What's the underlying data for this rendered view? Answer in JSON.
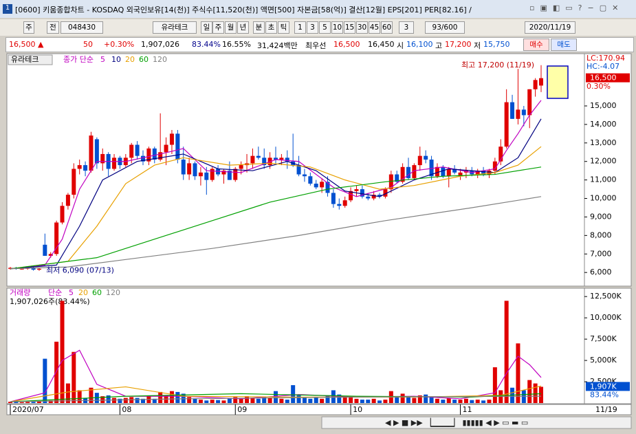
{
  "window": {
    "title": "[0600] 키움종합차트 - KOSDAQ 외국인보유[14(천)] 주식수[11,520(천)] 액면[500] 자본금[58(억)] 결산[12월] EPS[201] PER[82.16] /"
  },
  "toolbar": {
    "items": [
      "주",
      "전",
      "048430",
      "유라테크",
      "일",
      "주",
      "월",
      "년",
      "분",
      "초",
      "틱",
      "1",
      "3",
      "5",
      "10",
      "15",
      "30",
      "45",
      "60",
      "3",
      "93/600",
      "2020/11/19"
    ]
  },
  "quote": {
    "items": [
      "16,500 ▲",
      "50",
      "+0.30%",
      "1,907,026",
      "83.44%",
      "16.55%",
      "31,424백만",
      "최우선",
      "16,500",
      "16,450",
      "시",
      "16,100",
      "고",
      "17,200",
      "저",
      "15,750"
    ],
    "buy": "매수",
    "sell": "매도"
  },
  "chart_data": {
    "type": "candlestick",
    "name": "유라테크",
    "price_legend": "종가 단순",
    "candles": [
      [
        6200,
        6300,
        6150,
        6250
      ],
      [
        6250,
        6300,
        6150,
        6200
      ],
      [
        6200,
        6250,
        6150,
        6200
      ],
      [
        6200,
        6300,
        6150,
        6250
      ],
      [
        6250,
        6300,
        6100,
        6150
      ],
      [
        6150,
        6250,
        6090,
        6200
      ],
      [
        7500,
        8100,
        6900,
        6900
      ],
      [
        6900,
        7100,
        6800,
        7000
      ],
      [
        7000,
        8800,
        6900,
        8700
      ],
      [
        8700,
        9800,
        8600,
        9600
      ],
      [
        9600,
        10300,
        9400,
        10200
      ],
      [
        10200,
        11900,
        10000,
        11600
      ],
      [
        11600,
        12100,
        11300,
        11800
      ],
      [
        11800,
        12000,
        11200,
        11500
      ],
      [
        11500,
        13600,
        11400,
        13400
      ],
      [
        13200,
        13300,
        11600,
        11900
      ],
      [
        11900,
        12700,
        11500,
        12400
      ],
      [
        12400,
        12500,
        11200,
        11600
      ],
      [
        11600,
        12400,
        11500,
        12200
      ],
      [
        12200,
        12300,
        11600,
        11800
      ],
      [
        11800,
        12400,
        11700,
        12200
      ],
      [
        12200,
        13000,
        11900,
        12900
      ],
      [
        12900,
        13100,
        12100,
        12300
      ],
      [
        12300,
        12600,
        11800,
        12000
      ],
      [
        12000,
        12800,
        11800,
        12700
      ],
      [
        12700,
        12800,
        11900,
        12100
      ],
      [
        12100,
        14600,
        12000,
        12500
      ],
      [
        12500,
        13300,
        11800,
        12900
      ],
      [
        12900,
        13700,
        12400,
        13500
      ],
      [
        13500,
        13700,
        11900,
        12100
      ],
      [
        12100,
        12800,
        11000,
        11300
      ],
      [
        11300,
        12200,
        11000,
        11900
      ],
      [
        11900,
        12000,
        11000,
        11200
      ],
      [
        11200,
        11700,
        10700,
        11400
      ],
      [
        11400,
        11700,
        10200,
        11000
      ],
      [
        11000,
        11700,
        10900,
        11600
      ],
      [
        11600,
        11800,
        11200,
        11300
      ],
      [
        11300,
        11600,
        10800,
        11500
      ],
      [
        11500,
        12000,
        11000,
        11000
      ],
      [
        11000,
        11700,
        10900,
        11600
      ],
      [
        11600,
        12000,
        11300,
        11800
      ],
      [
        11800,
        12400,
        11400,
        11900
      ],
      [
        11900,
        12700,
        11600,
        12300
      ],
      [
        12300,
        12800,
        12100,
        12200
      ],
      [
        12200,
        12700,
        11600,
        11800
      ],
      [
        11800,
        12500,
        11600,
        12200
      ],
      [
        12200,
        12800,
        11900,
        12100
      ],
      [
        12100,
        12400,
        11800,
        12200
      ],
      [
        12200,
        12600,
        11600,
        12000
      ],
      [
        12000,
        13500,
        11700,
        11800
      ],
      [
        11800,
        12300,
        11200,
        11300
      ],
      [
        11300,
        11600,
        10900,
        11200
      ],
      [
        11200,
        11400,
        10700,
        10800
      ],
      [
        10800,
        11000,
        10500,
        10600
      ],
      [
        10600,
        11100,
        10300,
        10900
      ],
      [
        10900,
        11200,
        10100,
        10300
      ],
      [
        10300,
        10500,
        9500,
        9700
      ],
      [
        9700,
        10000,
        9400,
        9600
      ],
      [
        9600,
        10100,
        9500,
        9900
      ],
      [
        9900,
        10600,
        9800,
        10400
      ],
      [
        10400,
        10700,
        10100,
        10500
      ],
      [
        10500,
        10700,
        10000,
        10100
      ],
      [
        10100,
        10300,
        9900,
        10000
      ],
      [
        10000,
        10400,
        9900,
        10200
      ],
      [
        10200,
        10300,
        10000,
        10100
      ],
      [
        10100,
        10600,
        10000,
        10500
      ],
      [
        10500,
        11500,
        10300,
        11300
      ],
      [
        11300,
        11500,
        10800,
        10900
      ],
      [
        10900,
        11900,
        10800,
        11700
      ],
      [
        11700,
        12200,
        11000,
        11100
      ],
      [
        11100,
        11900,
        11000,
        11800
      ],
      [
        11800,
        12800,
        11500,
        12300
      ],
      [
        12300,
        12600,
        11900,
        12100
      ],
      [
        12100,
        12300,
        11000,
        11200
      ],
      [
        11200,
        11900,
        11100,
        11700
      ],
      [
        11700,
        11800,
        11100,
        11200
      ],
      [
        11200,
        11700,
        10600,
        11600
      ],
      [
        11600,
        11800,
        11300,
        11400
      ],
      [
        11200,
        11600,
        11000,
        11400
      ],
      [
        11400,
        11700,
        11100,
        11500
      ],
      [
        11500,
        11700,
        11200,
        11300
      ],
      [
        11300,
        11600,
        11100,
        11500
      ],
      [
        11500,
        11700,
        11200,
        11300
      ],
      [
        11300,
        11600,
        11100,
        11500
      ],
      [
        11500,
        12200,
        11300,
        12000
      ],
      [
        12000,
        13200,
        11800,
        12800
      ],
      [
        12800,
        15900,
        12700,
        15200
      ],
      [
        15200,
        15600,
        14300,
        14300
      ],
      [
        14300,
        17000,
        14000,
        14800
      ],
      [
        14800,
        15000,
        13900,
        14500
      ],
      [
        14500,
        15900,
        13800,
        15900
      ],
      [
        15900,
        16500,
        15500,
        16400
      ],
      [
        16100,
        17200,
        15750,
        16500
      ]
    ],
    "up_color": "#e00000",
    "down_color": "#0050d0",
    "ylim": [
      5300,
      17750
    ],
    "yticks": [
      {
        "value": 6000,
        "label": "6,000"
      },
      {
        "value": 7000,
        "label": "7,000"
      },
      {
        "value": 8000,
        "label": "8,000"
      },
      {
        "value": 9000,
        "label": "9,000"
      },
      {
        "value": 10000,
        "label": "10,000"
      },
      {
        "value": 11000,
        "label": "11,000"
      },
      {
        "value": 12000,
        "label": "12,000"
      },
      {
        "value": 13000,
        "label": "13,000"
      },
      {
        "value": 14000,
        "label": "14,000"
      },
      {
        "value": 15000,
        "label": "15,000"
      }
    ],
    "ma": [
      {
        "name": "5",
        "color": "#c000c0",
        "x": [
          0,
          6,
          9,
          12,
          15,
          20,
          26,
          30,
          34,
          40,
          46,
          50,
          56,
          60,
          66,
          70,
          75,
          80,
          84,
          86,
          88,
          90,
          92
        ],
        "values": [
          6200,
          6400,
          7800,
          10500,
          12000,
          12000,
          12400,
          12700,
          11500,
          11400,
          12100,
          12000,
          10600,
          10100,
          10600,
          11500,
          11700,
          11400,
          11600,
          12600,
          13500,
          14500,
          15300
        ]
      },
      {
        "name": "10",
        "color": "#000080",
        "x": [
          0,
          8,
          12,
          16,
          22,
          30,
          36,
          42,
          48,
          53,
          58,
          64,
          70,
          76,
          84,
          88,
          92
        ],
        "values": [
          6200,
          6400,
          8500,
          11000,
          12000,
          12400,
          11600,
          11500,
          12000,
          11500,
          10400,
          10100,
          11000,
          11600,
          11400,
          12200,
          14300
        ]
      },
      {
        "name": "20",
        "color": "#e8a000",
        "x": [
          0,
          10,
          15,
          20,
          25,
          30,
          38,
          45,
          52,
          58,
          64,
          70,
          78,
          84,
          88,
          92
        ],
        "values": [
          6200,
          6600,
          8500,
          10800,
          11800,
          12200,
          11800,
          11900,
          11700,
          11000,
          10500,
          10700,
          11200,
          11400,
          11800,
          12800
        ]
      },
      {
        "name": "60",
        "color": "#00a000",
        "x": [
          0,
          15,
          25,
          35,
          45,
          55,
          65,
          75,
          84,
          92
        ],
        "values": [
          6200,
          6800,
          7800,
          8800,
          9800,
          10500,
          10900,
          11200,
          11300,
          11700
        ]
      },
      {
        "name": "120",
        "color": "#808080",
        "x": [
          0,
          10,
          20,
          35,
          50,
          65,
          80,
          92
        ],
        "values": [
          6200,
          6300,
          6700,
          7300,
          8000,
          8800,
          9500,
          10100
        ]
      }
    ],
    "high_marker": {
      "value": 17200,
      "index": 92,
      "label": "최고 17,200 (11/19)"
    },
    "low_marker": {
      "value": 6090,
      "index": 5,
      "label": "최저 6,090 (07/13)"
    },
    "price_marker": {
      "value": 16500,
      "label": "16,500"
    },
    "right_labels": [
      "LC:170.94",
      "HC:-4.07",
      "0.30%"
    ],
    "volume": {
      "legend": "거래량",
      "legend_type": "단순",
      "summary": "1,907,026주(83.44%)",
      "values": [
        150,
        120,
        100,
        130,
        140,
        200,
        5200,
        300,
        7200,
        12000,
        2300,
        6000,
        1500,
        600,
        1800,
        1200,
        800,
        900,
        600,
        500,
        600,
        700,
        600,
        500,
        800,
        500,
        1300,
        900,
        1400,
        1300,
        1100,
        700,
        500,
        400,
        300,
        400,
        350,
        300,
        600,
        700,
        500,
        800,
        600,
        500,
        700,
        600,
        1400,
        500,
        400,
        2100,
        900,
        600,
        500,
        700,
        500,
        900,
        1500,
        1000,
        800,
        700,
        500,
        400,
        400,
        500,
        300,
        400,
        1400,
        700,
        1100,
        800,
        600,
        900,
        1000,
        700,
        500,
        400,
        600,
        400,
        400,
        500,
        350,
        400,
        300,
        400,
        4200,
        1500,
        12000,
        1800,
        7000,
        1500,
        2700,
        2300,
        1907
      ],
      "ylim": [
        0,
        13400
      ],
      "yticks": [
        {
          "value": 2500,
          "label": "2,500K"
        },
        {
          "value": 5000,
          "label": "5,000K"
        },
        {
          "value": 7500,
          "label": "7,500K"
        },
        {
          "value": 10000,
          "label": "10,000K"
        },
        {
          "value": 12500,
          "label": "12,500K"
        }
      ],
      "marker": {
        "value": 1907,
        "label": "1,907K"
      },
      "marker_pct": "83.44%",
      "ma": [
        {
          "name": "5",
          "color": "#c000c0",
          "x": [
            0,
            6,
            9,
            12,
            15,
            20,
            30,
            40,
            50,
            60,
            70,
            78,
            84,
            86,
            88,
            90,
            92
          ],
          "values": [
            150,
            1200,
            5000,
            6200,
            2200,
            800,
            800,
            500,
            1000,
            700,
            800,
            500,
            1200,
            3500,
            5500,
            4500,
            3000
          ]
        },
        {
          "name": "20",
          "color": "#e8a000",
          "x": [
            0,
            10,
            20,
            30,
            50,
            70,
            85,
            92
          ],
          "values": [
            150,
            1300,
            1900,
            800,
            700,
            700,
            900,
            2000
          ]
        },
        {
          "name": "60",
          "color": "#00a000",
          "x": [
            0,
            20,
            40,
            60,
            80,
            92
          ],
          "values": [
            150,
            800,
            1100,
            800,
            700,
            1100
          ]
        },
        {
          "name": "120",
          "color": "#808080",
          "x": [
            0,
            30,
            60,
            92
          ],
          "values": [
            150,
            500,
            700,
            800
          ]
        }
      ]
    },
    "dates": [
      {
        "label": "2020/07",
        "index": 0
      },
      {
        "label": "08",
        "index": 19
      },
      {
        "label": "09",
        "index": 39
      },
      {
        "label": "10",
        "index": 59
      },
      {
        "label": "11",
        "index": 78
      }
    ],
    "last_date": "11/19"
  }
}
